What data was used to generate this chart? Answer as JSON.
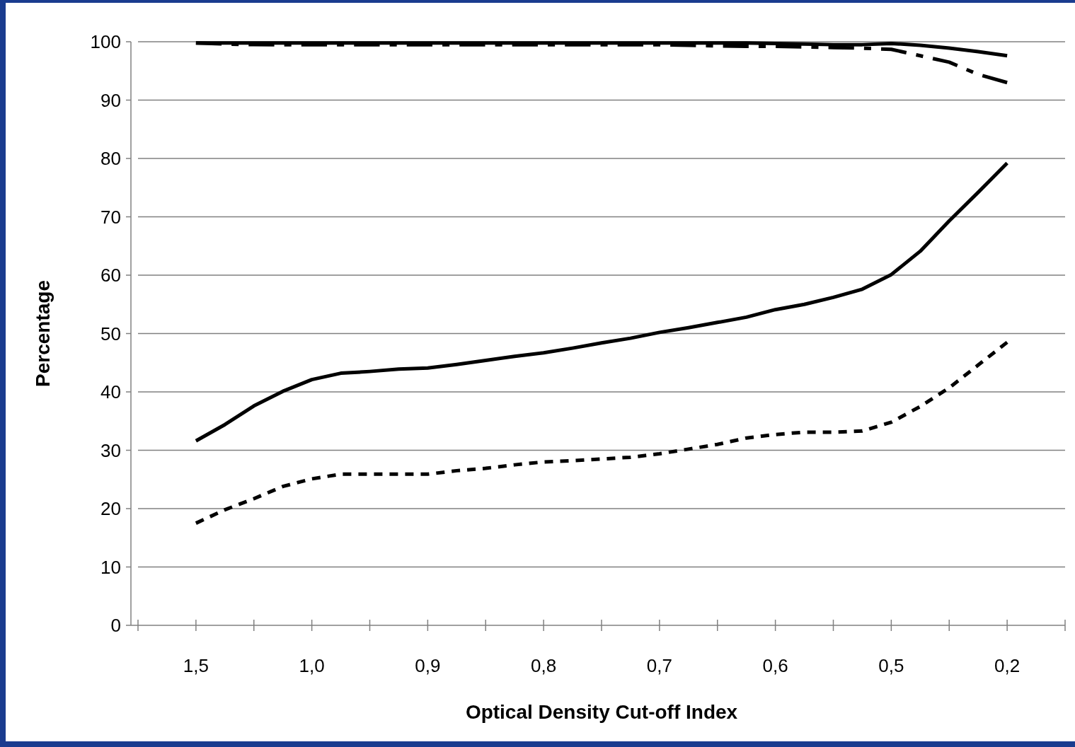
{
  "chart_data": {
    "type": "line",
    "xlabel": "Optical Density Cut-off Index",
    "ylabel": "Percentage",
    "categories": [
      "1,5",
      null,
      null,
      null,
      "1,0",
      null,
      null,
      null,
      "0,9",
      null,
      null,
      null,
      "0,8",
      null,
      null,
      null,
      "0,7",
      null,
      null,
      null,
      "0,6",
      null,
      null,
      null,
      "0,5",
      null,
      null,
      null,
      "0,2"
    ],
    "ylim": [
      0,
      100
    ],
    "yticks": [
      0,
      10,
      20,
      30,
      40,
      50,
      60,
      70,
      80,
      90,
      100
    ],
    "grid": "y",
    "series": [
      {
        "color": "#000000",
        "line_style": "solid",
        "values": [
          99.8,
          99.8,
          99.8,
          99.8,
          99.8,
          99.8,
          99.8,
          99.8,
          99.8,
          99.8,
          99.8,
          99.8,
          99.8,
          99.8,
          99.8,
          99.8,
          99.8,
          99.8,
          99.8,
          99.8,
          99.7,
          99.6,
          99.5,
          99.5,
          99.7,
          99.4,
          98.9,
          98.3,
          97.6
        ]
      },
      {
        "color": "#000000",
        "line_style": "dashed",
        "values": [
          99.8,
          99.6,
          99.5,
          99.5,
          99.5,
          99.5,
          99.5,
          99.5,
          99.5,
          99.5,
          99.5,
          99.5,
          99.5,
          99.5,
          99.5,
          99.5,
          99.5,
          99.4,
          99.3,
          99.2,
          99.2,
          99.1,
          99.0,
          98.9,
          98.7,
          97.6,
          96.5,
          94.4,
          93.0
        ]
      },
      {
        "color": "#000000",
        "line_style": "solid",
        "values": [
          31.6,
          34.4,
          37.6,
          40.1,
          42.1,
          43.2,
          43.5,
          43.9,
          44.1,
          44.7,
          45.4,
          46.1,
          46.7,
          47.5,
          48.4,
          49.2,
          50.2,
          51.0,
          51.9,
          52.8,
          54.1,
          55.0,
          56.2,
          57.6,
          60.1,
          64.1,
          69.3,
          74.2,
          79.2
        ]
      },
      {
        "color": "#000000",
        "line_style": "dotted",
        "values": [
          17.5,
          19.8,
          21.7,
          23.8,
          25.1,
          25.9,
          25.9,
          25.9,
          25.9,
          26.5,
          26.9,
          27.5,
          28.0,
          28.2,
          28.5,
          28.8,
          29.4,
          30.2,
          31.0,
          32.1,
          32.7,
          33.1,
          33.1,
          33.3,
          34.8,
          37.5,
          40.7,
          44.6,
          48.5
        ]
      }
    ]
  }
}
